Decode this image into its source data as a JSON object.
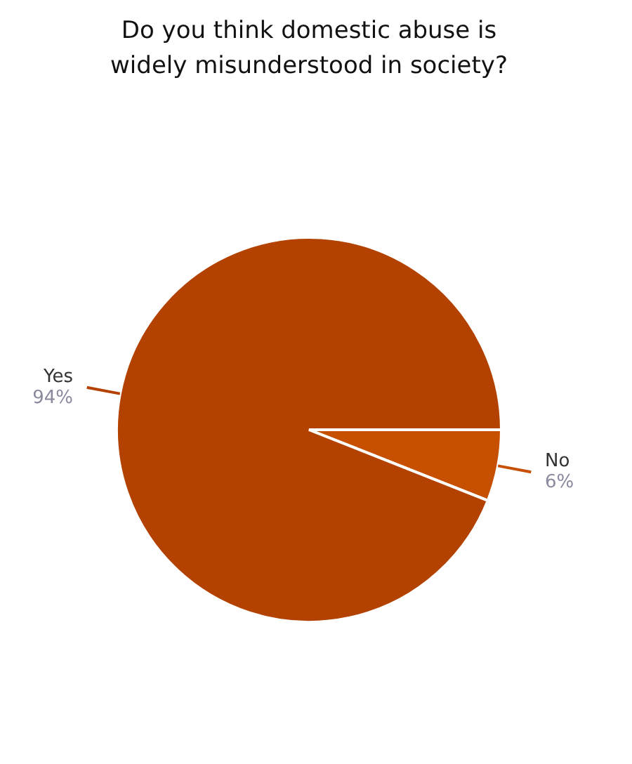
{
  "chart_data": {
    "type": "pie",
    "title": "Do you think domestic abuse is widely misunderstood in society?",
    "categories": [
      "No",
      "Yes"
    ],
    "values": [
      6,
      94
    ],
    "colors": [
      "#c65000",
      "#b34200"
    ],
    "value_labels": [
      "6%",
      "94%"
    ]
  }
}
